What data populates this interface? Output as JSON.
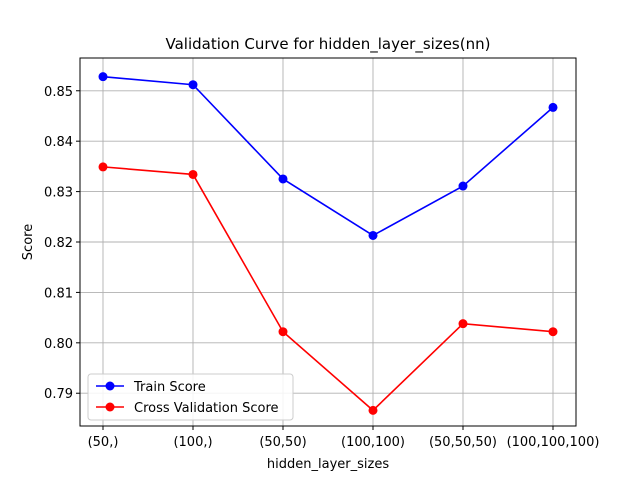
{
  "chart_data": {
    "type": "line",
    "title": "Validation Curve for hidden_layer_sizes(nn)",
    "xlabel": "hidden_layer_sizes",
    "ylabel": "Score",
    "categories": [
      "(50,)",
      "(100,)",
      "(50,50)",
      "(100,100)",
      "(50,50,50)",
      "(100,100,100)"
    ],
    "ylim": [
      0.7835,
      0.8565
    ],
    "yticks": [
      0.79,
      0.8,
      0.81,
      0.82,
      0.83,
      0.84,
      0.85
    ],
    "ytick_labels": [
      "0.79",
      "0.80",
      "0.81",
      "0.82",
      "0.83",
      "0.84",
      "0.85"
    ],
    "grid": true,
    "legend_position": "lower-left",
    "series": [
      {
        "name": "Train Score",
        "color": "#0000ff",
        "marker": "circle",
        "values": [
          0.8528,
          0.8512,
          0.8325,
          0.8213,
          0.8311,
          0.8467
        ]
      },
      {
        "name": "Cross Validation Score",
        "color": "#ff0000",
        "marker": "circle",
        "values": [
          0.8349,
          0.8334,
          0.8022,
          0.7866,
          0.8038,
          0.8022
        ]
      }
    ]
  }
}
